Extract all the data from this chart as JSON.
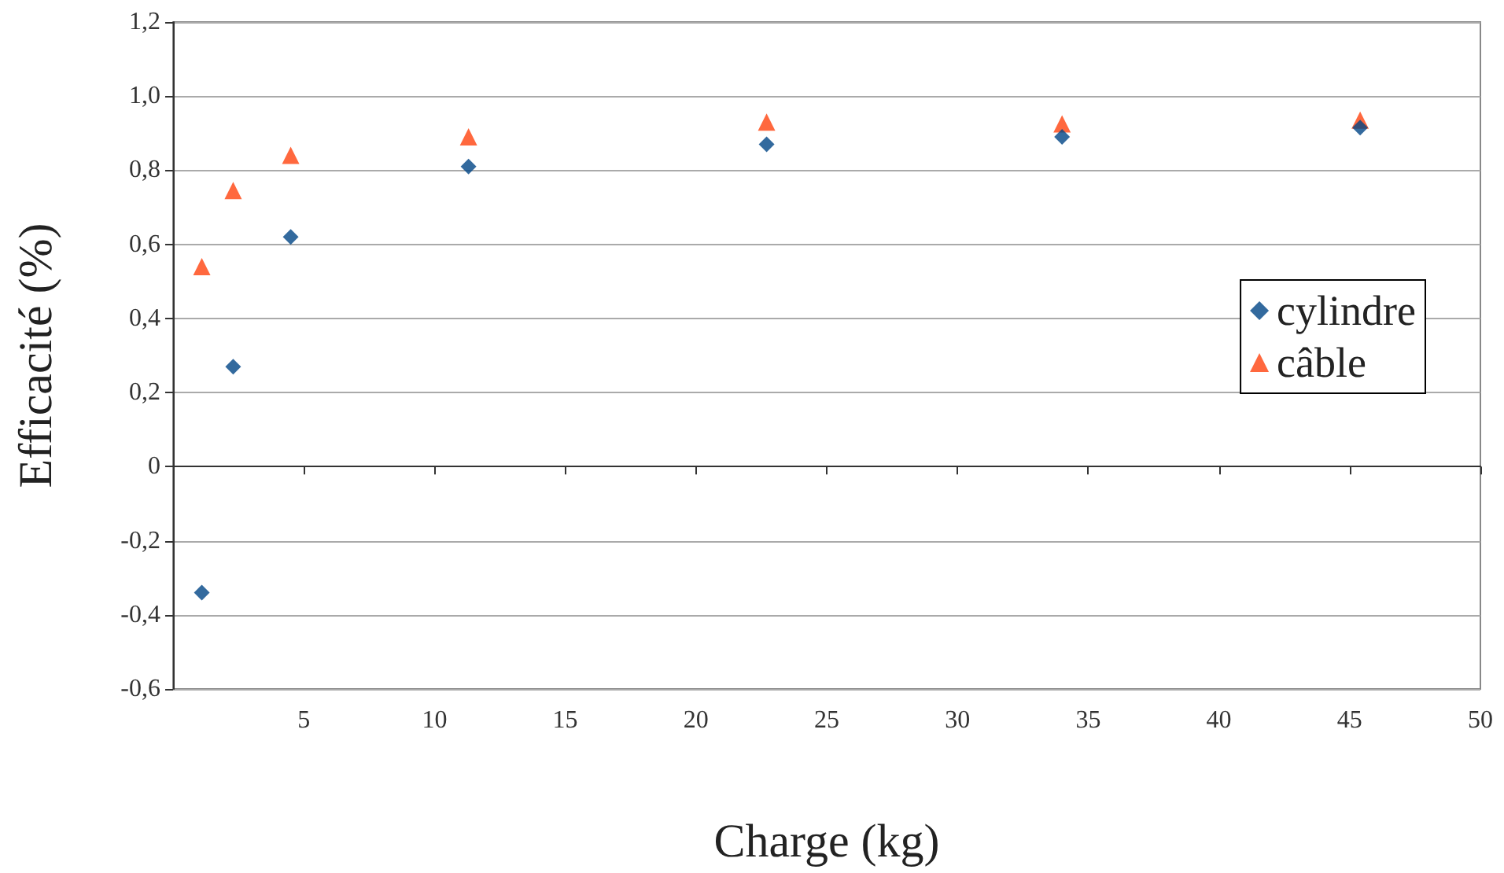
{
  "chart_data": {
    "type": "scatter",
    "xlabel": "Charge (kg)",
    "ylabel": "Efficacité (%)",
    "xlim": [
      0,
      50
    ],
    "xticks": [
      {
        "value": 0,
        "label": null
      },
      5,
      10,
      15,
      20,
      25,
      30,
      35,
      40,
      45,
      50
    ],
    "ylim": [
      -0.6,
      1.2
    ],
    "yticks": [
      {
        "value": -0.6,
        "label": "-0,6"
      },
      {
        "value": -0.4,
        "label": "-0,4"
      },
      {
        "value": -0.2,
        "label": "-0,2"
      },
      0,
      {
        "value": 0.2,
        "label": "0,2"
      },
      {
        "value": 0.4,
        "label": "0,4"
      },
      {
        "value": 0.6,
        "label": "0,6"
      },
      {
        "value": 0.8,
        "label": "0,8"
      },
      {
        "value": 1.0,
        "label": "1,0"
      },
      {
        "value": 1.2,
        "label": "1,2"
      }
    ],
    "grid": "y",
    "legend": "right",
    "series": [
      {
        "name": "cylindre",
        "color": "#004586",
        "marker": "diamond",
        "x": [
          1.1,
          2.3,
          4.5,
          11.3,
          22.7,
          34.0,
          45.4
        ],
        "values": [
          -0.34,
          0.27,
          0.62,
          0.81,
          0.87,
          0.89,
          0.915
        ]
      },
      {
        "name": "câble",
        "color": "#ff420e",
        "marker": "triangle",
        "x": [
          1.1,
          2.3,
          4.5,
          11.3,
          22.7,
          34.0,
          45.4
        ],
        "values": [
          0.54,
          0.745,
          0.84,
          0.89,
          0.93,
          0.925,
          0.935
        ]
      }
    ]
  }
}
